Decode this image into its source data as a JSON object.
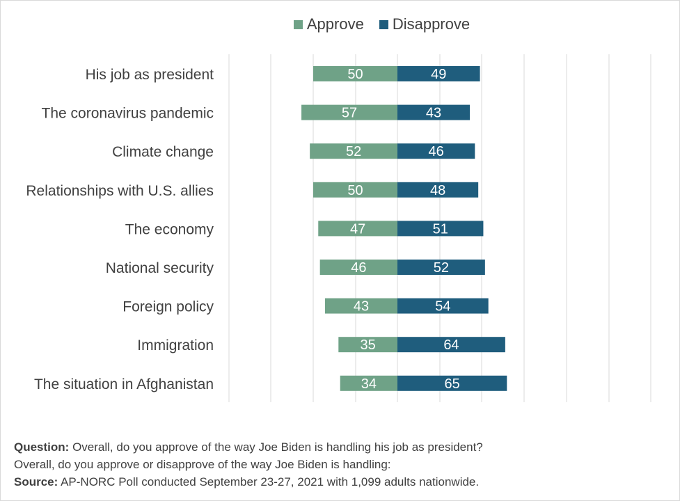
{
  "legend": {
    "approve": {
      "label": "Approve",
      "color": "#6fa287"
    },
    "disapprove": {
      "label": "Disapprove",
      "color": "#1f5d7d"
    }
  },
  "chart_data": {
    "type": "bar",
    "orientation": "horizontal-diverging",
    "categories": [
      "His job as president",
      "The coronavirus pandemic",
      "Climate change",
      "Relationships with U.S. allies",
      "The economy",
      "National security",
      "Foreign policy",
      "Immigration",
      "The situation in Afghanistan"
    ],
    "series": [
      {
        "name": "Approve",
        "values": [
          50,
          57,
          52,
          50,
          47,
          46,
          43,
          35,
          34
        ],
        "color": "#6fa287",
        "direction": "left"
      },
      {
        "name": "Disapprove",
        "values": [
          49,
          43,
          46,
          48,
          51,
          52,
          54,
          64,
          65
        ],
        "color": "#1f5d7d",
        "direction": "right"
      }
    ],
    "grid": true,
    "legend_position": "top"
  },
  "footnote": {
    "question_label": "Question:",
    "question_text": " Overall, do you approve of the way Joe Biden is handling his job as president?",
    "question_text2": "Overall, do you approve or disapprove of the way Joe Biden is handling:",
    "source_label": "Source:",
    "source_text": " AP-NORC Poll conducted September 23-27, 2021 with 1,099 adults nationwide."
  }
}
